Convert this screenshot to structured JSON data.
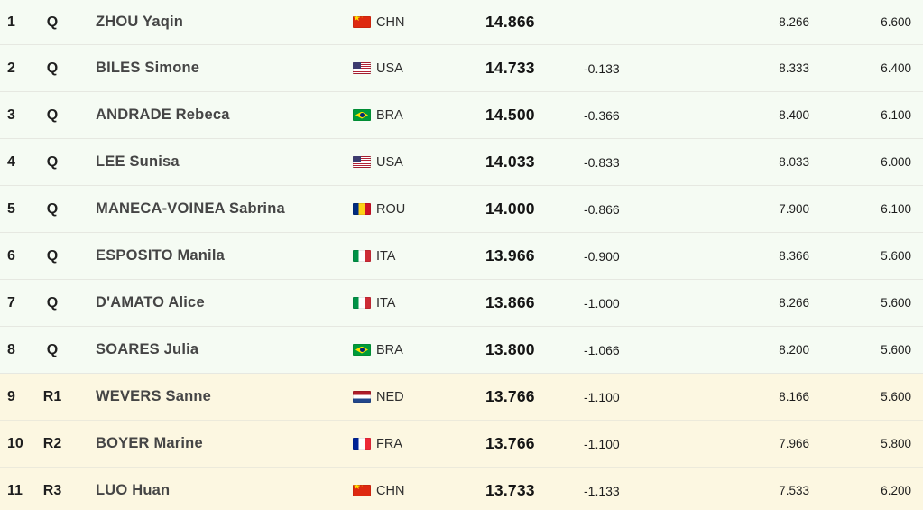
{
  "table": {
    "description": "Gymnastics balance beam results table with qualification and reserve rows",
    "colors": {
      "row_bg_qualified": "#f5fbf3",
      "row_bg_reserve": "#fcf7e1",
      "divider": "#e6e8e1",
      "text_primary": "#1e1e1e",
      "text_name": "#454545"
    },
    "flag_colors": {
      "chn": [
        "#de2910",
        "#ffde00"
      ],
      "usa": [
        "#b22234",
        "#ffffff",
        "#3c3b6e"
      ],
      "bra": [
        "#009b3a",
        "#fedf00",
        "#002776"
      ],
      "rou": [
        "#002b7f",
        "#fcd116",
        "#ce1126"
      ],
      "ita": [
        "#009246",
        "#ffffff",
        "#ce2b37"
      ],
      "ned": [
        "#ae1c28",
        "#ffffff",
        "#21468b"
      ],
      "fra": [
        "#002395",
        "#ffffff",
        "#ed2939"
      ]
    },
    "rows": [
      {
        "rank": "1",
        "qual": "Q",
        "name": "ZHOU Yaqin",
        "country": "CHN",
        "flag": "chn",
        "total": "14.866",
        "gap": "",
        "e_score": "8.266",
        "d_score": "6.600",
        "reserve": false
      },
      {
        "rank": "2",
        "qual": "Q",
        "name": "BILES Simone",
        "country": "USA",
        "flag": "usa",
        "total": "14.733",
        "gap": "-0.133",
        "e_score": "8.333",
        "d_score": "6.400",
        "reserve": false
      },
      {
        "rank": "3",
        "qual": "Q",
        "name": "ANDRADE Rebeca",
        "country": "BRA",
        "flag": "bra",
        "total": "14.500",
        "gap": "-0.366",
        "e_score": "8.400",
        "d_score": "6.100",
        "reserve": false
      },
      {
        "rank": "4",
        "qual": "Q",
        "name": "LEE Sunisa",
        "country": "USA",
        "flag": "usa",
        "total": "14.033",
        "gap": "-0.833",
        "e_score": "8.033",
        "d_score": "6.000",
        "reserve": false
      },
      {
        "rank": "5",
        "qual": "Q",
        "name": "MANECA-VOINEA Sabrina",
        "country": "ROU",
        "flag": "rou",
        "total": "14.000",
        "gap": "-0.866",
        "e_score": "7.900",
        "d_score": "6.100",
        "reserve": false
      },
      {
        "rank": "6",
        "qual": "Q",
        "name": "ESPOSITO Manila",
        "country": "ITA",
        "flag": "ita",
        "total": "13.966",
        "gap": "-0.900",
        "e_score": "8.366",
        "d_score": "5.600",
        "reserve": false
      },
      {
        "rank": "7",
        "qual": "Q",
        "name": "D'AMATO Alice",
        "country": "ITA",
        "flag": "ita",
        "total": "13.866",
        "gap": "-1.000",
        "e_score": "8.266",
        "d_score": "5.600",
        "reserve": false
      },
      {
        "rank": "8",
        "qual": "Q",
        "name": "SOARES Julia",
        "country": "BRA",
        "flag": "bra",
        "total": "13.800",
        "gap": "-1.066",
        "e_score": "8.200",
        "d_score": "5.600",
        "reserve": false
      },
      {
        "rank": "9",
        "qual": "R1",
        "name": "WEVERS Sanne",
        "country": "NED",
        "flag": "ned",
        "total": "13.766",
        "gap": "-1.100",
        "e_score": "8.166",
        "d_score": "5.600",
        "reserve": true
      },
      {
        "rank": "10",
        "qual": "R2",
        "name": "BOYER Marine",
        "country": "FRA",
        "flag": "fra",
        "total": "13.766",
        "gap": "-1.100",
        "e_score": "7.966",
        "d_score": "5.800",
        "reserve": true
      },
      {
        "rank": "11",
        "qual": "R3",
        "name": "LUO Huan",
        "country": "CHN",
        "flag": "chn",
        "total": "13.733",
        "gap": "-1.133",
        "e_score": "7.533",
        "d_score": "6.200",
        "reserve": true
      }
    ]
  }
}
